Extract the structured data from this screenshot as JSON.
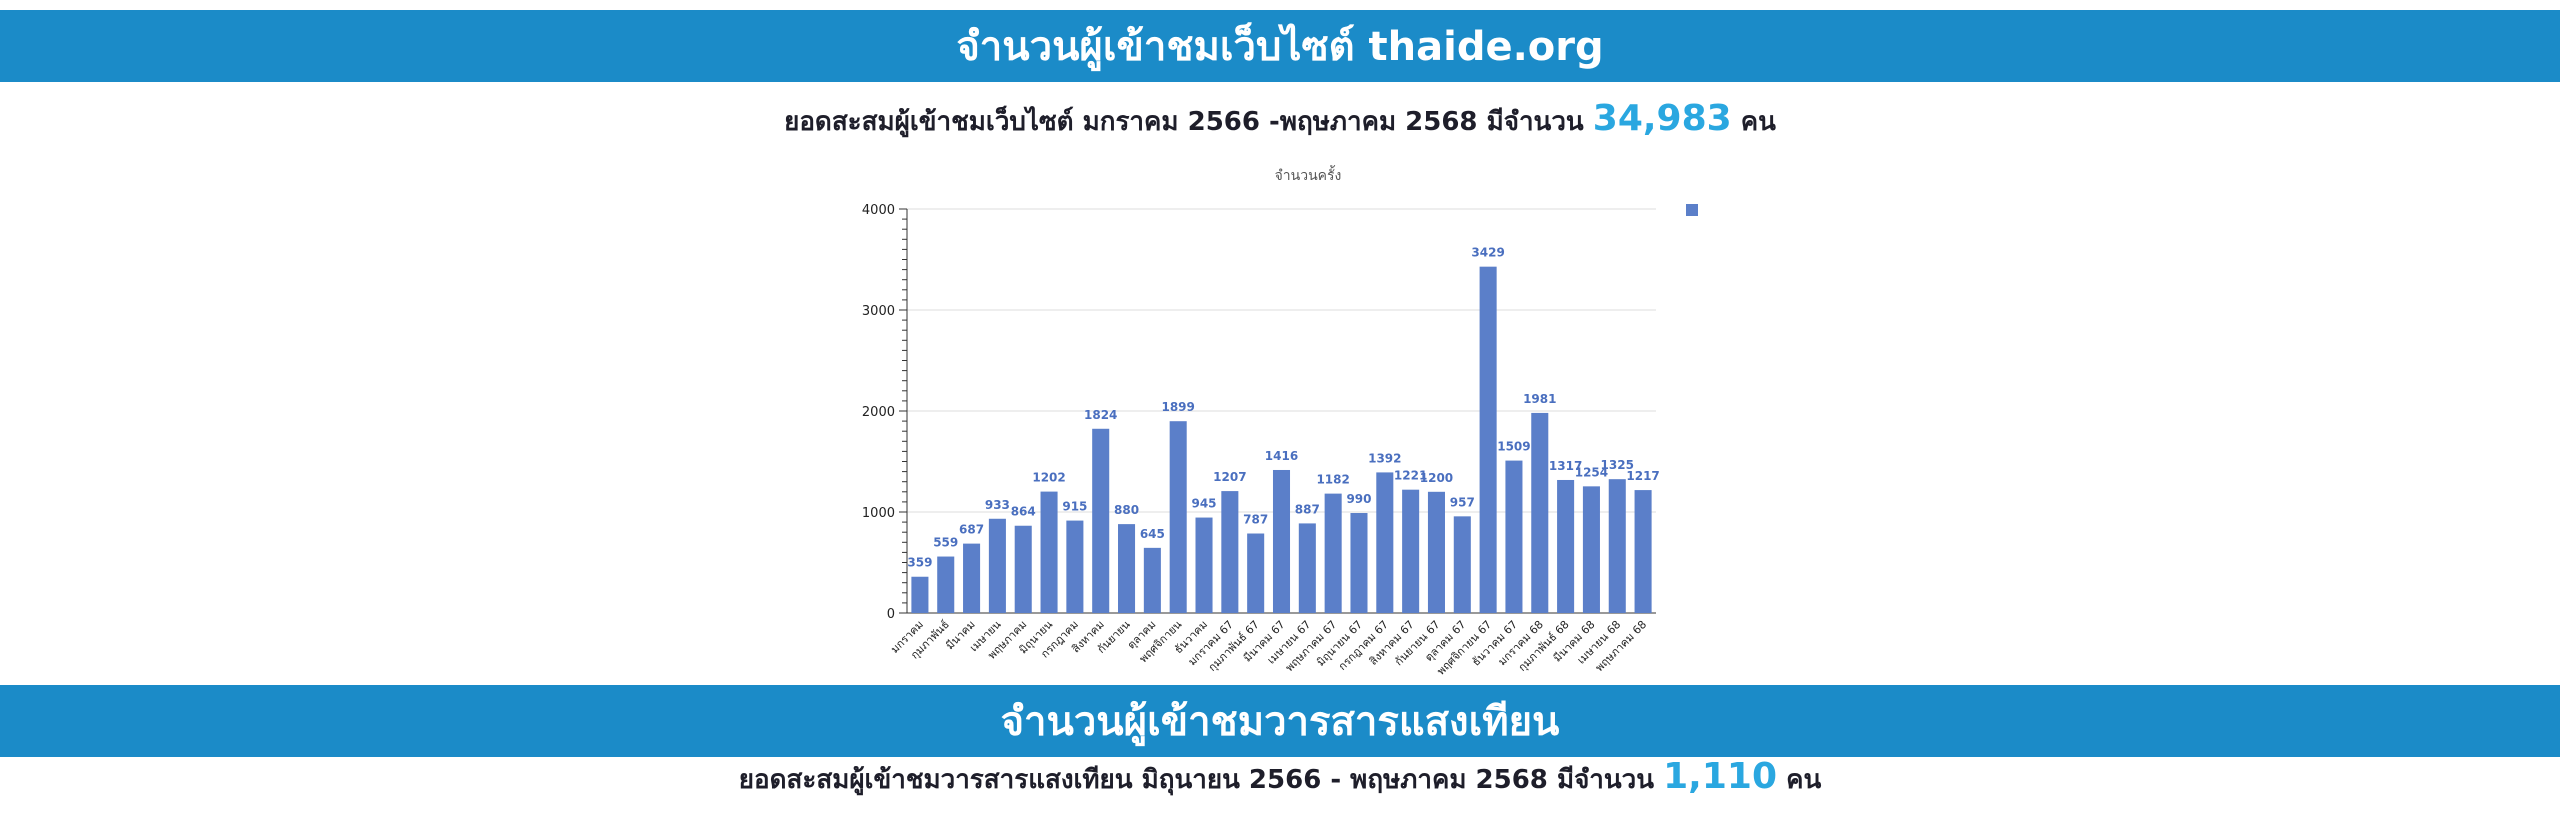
{
  "colors": {
    "banner": "#1b8bc8",
    "bar": "#5b7fc9",
    "bar_label": "#4a6fbf",
    "highlight": "#2aa7e0",
    "text": "#1e1e2a"
  },
  "website_section": {
    "title": "จำนวนผู้เข้าชมเว็บไซต์ thaide.org",
    "summary_prefix": "ยอดสะสมผู้เข้าชมเว็บไซต์ มกราคม 2566 -พฤษภาคม 2568 มีจำนวน",
    "summary_total": "34,983",
    "summary_unit": "คน"
  },
  "journal_section": {
    "title": "จำนวนผู้เข้าชมวารสารแสงเทียน",
    "summary_prefix": "ยอดสะสมผู้เข้าชมวารสารแสงเทียน มิถุนายน 2566 - พฤษภาคม 2568 มีจำนวน",
    "summary_total": "1,110",
    "summary_unit": "คน"
  },
  "chart_data": {
    "type": "bar",
    "title": "จำนวนครั้ง",
    "xlabel": "",
    "ylabel": "",
    "ylim": [
      0,
      4000
    ],
    "yticks": [
      0,
      1000,
      2000,
      3000,
      4000
    ],
    "grid": true,
    "legend_position": "top-right",
    "categories": [
      "มกราคม",
      "กุมภาพันธ์",
      "มีนาคม",
      "เมษายน",
      "พฤษภาคม",
      "มิถุนายน",
      "กรกฎาคม",
      "สิงหาคม",
      "กันยายน",
      "ตุลาคม",
      "พฤศจิกายน",
      "ธันวาคม",
      "มกราคม 67",
      "กุมภาพันธ์ 67",
      "มีนาคม 67",
      "เมษายน 67",
      "พฤษภาคม 67",
      "มิถุนายน 67",
      "กรกฎาคม 67",
      "สิงหาคม 67",
      "กันยายน 67",
      "ตุลาคม 67",
      "พฤศจิกายน 67",
      "ธันวาคม 67",
      "มกราคม 68",
      "กุมภาพันธ์ 68",
      "มีนาคม 68",
      "เมษายน 68",
      "พฤษภาคม 68"
    ],
    "values": [
      359,
      559,
      687,
      933,
      864,
      1202,
      915,
      1824,
      880,
      645,
      1899,
      945,
      1207,
      787,
      1416,
      887,
      1182,
      990,
      1392,
      1221,
      1200,
      957,
      3429,
      1509,
      1981,
      1317,
      1254,
      1325,
      1217
    ]
  }
}
